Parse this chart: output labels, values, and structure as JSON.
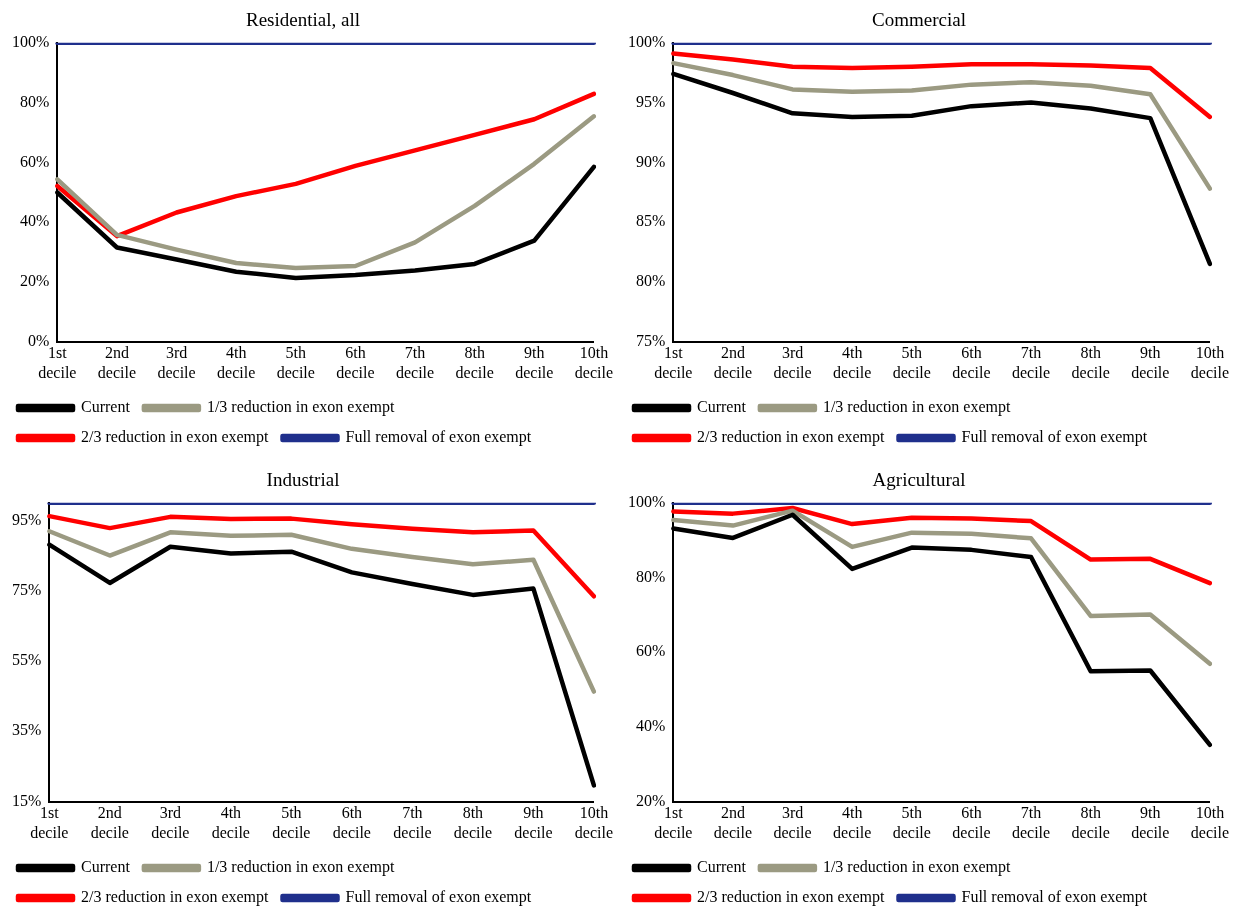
{
  "chart_data": [
    {
      "type": "line",
      "title": "Residential, all",
      "categories": [
        "1st decile",
        "2nd decile",
        "3rd decile",
        "4th decile",
        "5th decile",
        "6th decile",
        "7th decile",
        "8th decile",
        "9th decile",
        "10th decile"
      ],
      "series": [
        {
          "name": "Current",
          "color": "#000000",
          "values": [
            49.9,
            31.5,
            27.5,
            23.4,
            21.3,
            22.3,
            23.8,
            26,
            33.8,
            58.5
          ]
        },
        {
          "name": "1/3 reduction in exon exempt",
          "color": "#9b9a82",
          "values": [
            54.3,
            35.7,
            30.8,
            26.3,
            24.6,
            25.3,
            33.2,
            45.4,
            59.5,
            75.4
          ]
        },
        {
          "name": "2/3 reduction in exon exempt",
          "color": "#ff0000",
          "values": [
            52.1,
            35.3,
            43.2,
            48.7,
            52.8,
            58.8,
            64,
            69.2,
            74.4,
            82.9
          ]
        },
        {
          "name": "Full removal of exon exempt",
          "color": "#1f2f8c",
          "values": [
            100,
            100,
            100,
            100,
            100,
            100,
            100,
            100,
            100,
            100
          ]
        }
      ],
      "ylim": [
        0,
        100
      ],
      "yticks": [
        {
          "value": 0,
          "label": "0%"
        },
        {
          "value": 20,
          "label": "20%"
        },
        {
          "value": 40,
          "label": "40%"
        },
        {
          "value": 60,
          "label": "60%"
        },
        {
          "value": 80,
          "label": "80%"
        },
        {
          "value": 100,
          "label": "100%"
        }
      ],
      "grid": false,
      "legend": "bottom",
      "marker": "none",
      "line_style": "solid"
    },
    {
      "type": "line",
      "title": "Commercial",
      "categories": [
        "1st decile",
        "2nd decile",
        "3rd decile",
        "4th decile",
        "5th decile",
        "6th decile",
        "7th decile",
        "8th decile",
        "9th decile",
        "10th decile"
      ],
      "series": [
        {
          "name": "Current",
          "color": "#000000",
          "values": [
            97.4,
            95.8,
            94.1,
            93.8,
            93.9,
            94.7,
            95,
            94.5,
            93.7,
            81.5
          ]
        },
        {
          "name": "1/3 reduction in exon exempt",
          "color": "#9b9a82",
          "values": [
            98.3,
            97.3,
            96.1,
            95.9,
            96,
            96.5,
            96.7,
            96.4,
            95.7,
            87.8
          ]
        },
        {
          "name": "2/3 reduction in exon exempt",
          "color": "#ff0000",
          "values": [
            99.1,
            98.6,
            98,
            97.9,
            98,
            98.2,
            98.2,
            98.1,
            97.9,
            93.8
          ]
        },
        {
          "name": "Full removal of exon exempt",
          "color": "#1f2f8c",
          "values": [
            100,
            100,
            100,
            100,
            100,
            100,
            100,
            100,
            100,
            100
          ]
        }
      ],
      "ylim": [
        75,
        100
      ],
      "yticks": [
        {
          "value": 75,
          "label": "75%"
        },
        {
          "value": 80,
          "label": "80%"
        },
        {
          "value": 85,
          "label": "85%"
        },
        {
          "value": 90,
          "label": "90%"
        },
        {
          "value": 95,
          "label": "95%"
        },
        {
          "value": 100,
          "label": "100%"
        }
      ],
      "grid": false,
      "legend": "bottom",
      "marker": "none",
      "line_style": "solid"
    },
    {
      "type": "line",
      "title": "Industrial",
      "categories": [
        "1st decile",
        "2nd decile",
        "3rd decile",
        "4th decile",
        "5th decile",
        "6th decile",
        "7th decile",
        "8th decile",
        "9th decile",
        "10th decile"
      ],
      "series": [
        {
          "name": "Current",
          "color": "#000000",
          "values": [
            88.1,
            77.2,
            87.5,
            85.6,
            86.1,
            80.2,
            76.9,
            73.8,
            75.6,
            19.6
          ]
        },
        {
          "name": "1/3 reduction in exon exempt",
          "color": "#9b9a82",
          "values": [
            91.9,
            85,
            91.6,
            90.6,
            90.9,
            86.9,
            84.6,
            82.5,
            83.8,
            46.3
          ]
        },
        {
          "name": "2/3 reduction in exon exempt",
          "color": "#ff0000",
          "values": [
            96.2,
            92.8,
            96,
            95.4,
            95.5,
            93.9,
            92.6,
            91.6,
            92.1,
            73.4
          ]
        },
        {
          "name": "Full removal of exon exempt",
          "color": "#1f2f8c",
          "values": [
            100,
            100,
            100,
            100,
            100,
            100,
            100,
            100,
            100,
            100
          ]
        }
      ],
      "ylim": [
        15,
        100
      ],
      "yticks": [
        {
          "value": 15,
          "label": "15%"
        },
        {
          "value": 35,
          "label": "35%"
        },
        {
          "value": 55,
          "label": "55%"
        },
        {
          "value": 75,
          "label": "75%"
        },
        {
          "value": 95,
          "label": "95%"
        }
      ],
      "grid": false,
      "legend": "bottom",
      "marker": "none",
      "line_style": "solid"
    },
    {
      "type": "line",
      "title": "Agricultural",
      "categories": [
        "1st decile",
        "2nd decile",
        "3rd decile",
        "4th decile",
        "5th decile",
        "6th decile",
        "7th decile",
        "8th decile",
        "9th decile",
        "10th decile"
      ],
      "series": [
        {
          "name": "Current",
          "color": "#000000",
          "values": [
            93.1,
            90.6,
            96.8,
            82.3,
            88,
            87.4,
            85.5,
            54.9,
            55.1,
            35.2
          ]
        },
        {
          "name": "1/3 reduction in exon exempt",
          "color": "#9b9a82",
          "values": [
            95.4,
            93.9,
            97.9,
            88.2,
            92,
            91.7,
            90.5,
            69.7,
            70.1,
            56.9
          ]
        },
        {
          "name": "2/3 reduction in exon exempt",
          "color": "#ff0000",
          "values": [
            97.7,
            97.1,
            98.6,
            94.3,
            96,
            95.8,
            95.1,
            84.8,
            85,
            78.5
          ]
        },
        {
          "name": "Full removal of exon exempt",
          "color": "#1f2f8c",
          "values": [
            100,
            100,
            100,
            100,
            100,
            100,
            100,
            100,
            100,
            100
          ]
        }
      ],
      "ylim": [
        20,
        100
      ],
      "yticks": [
        {
          "value": 20,
          "label": "20%"
        },
        {
          "value": 40,
          "label": "40%"
        },
        {
          "value": 60,
          "label": "60%"
        },
        {
          "value": 80,
          "label": "80%"
        },
        {
          "value": 100,
          "label": "100%"
        }
      ],
      "grid": false,
      "legend": "bottom",
      "marker": "none",
      "line_style": "solid"
    }
  ]
}
